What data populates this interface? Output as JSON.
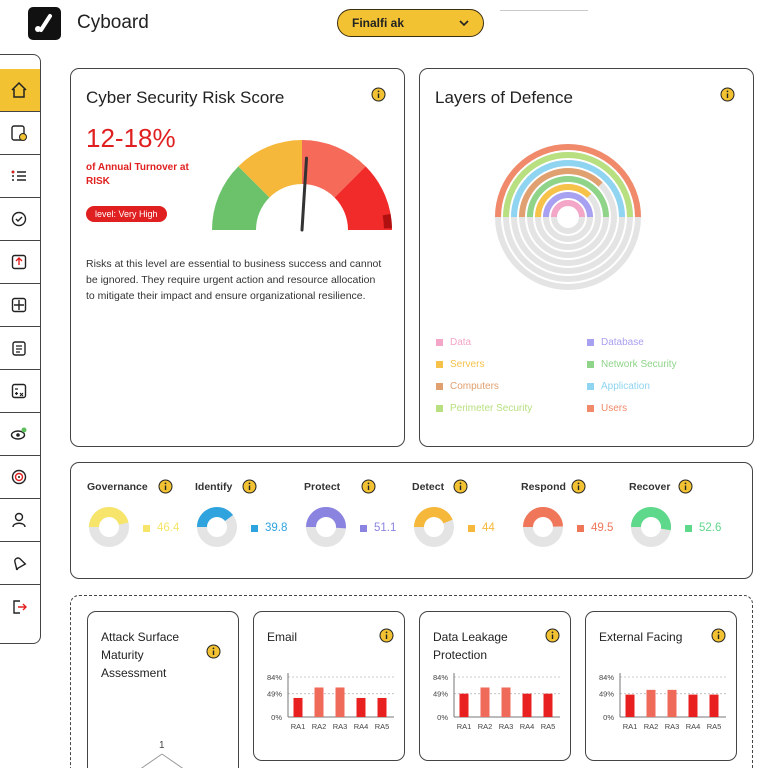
{
  "app": {
    "title": "Cyboard",
    "logo_icon": "checkmark-logo-icon"
  },
  "header": {
    "company_selected": "Finalfi ak",
    "dropdown_icon": "chevron-down-icon"
  },
  "colors": {
    "accent": "#f2c233",
    "danger": "#e02020",
    "border": "#444444"
  },
  "sidebar": {
    "items": [
      {
        "icon": "home-icon",
        "active": true
      },
      {
        "icon": "file-alert-icon"
      },
      {
        "icon": "checklist-icon"
      },
      {
        "icon": "chat-check-icon"
      },
      {
        "icon": "upload-box-icon"
      },
      {
        "icon": "grid-app-icon"
      },
      {
        "icon": "clipboard-icon"
      },
      {
        "icon": "calculator-icon"
      },
      {
        "icon": "eye-settings-icon"
      },
      {
        "icon": "target-icon"
      },
      {
        "icon": "user-icon"
      },
      {
        "icon": "bell-icon"
      },
      {
        "icon": "logout-icon"
      }
    ]
  },
  "risk_card": {
    "title": "Cyber Security Risk Score",
    "value": "12-18%",
    "subtitle": "of Annual Turnover at RISK",
    "badge": "level: Very High",
    "description": "Risks at this level are essential to business success and cannot be ignored. They require urgent action and resource allocation to mitigate their impact and ensure organizational resilience.",
    "gauge_segments": [
      "#6cc26a",
      "#f6b83a",
      "#f66a5a",
      "#f12a2a"
    ],
    "needle_level_percent": 52
  },
  "defence_card": {
    "title": "Layers of Defence",
    "legend": [
      {
        "label": "Data",
        "color": "#f4a6c8"
      },
      {
        "label": "Database",
        "color": "#a8a0f0"
      },
      {
        "label": "Servers",
        "color": "#f6c24a"
      },
      {
        "label": "Network Security",
        "color": "#8fd489"
      },
      {
        "label": "Computers",
        "color": "#e0a070"
      },
      {
        "label": "Application",
        "color": "#8fd4f0"
      },
      {
        "label": "Perimeter Security",
        "color": "#b8e080"
      },
      {
        "label": "Users",
        "color": "#f08a6a"
      }
    ],
    "rings": [
      {
        "name": "Users",
        "color": "#f08a6a",
        "percent": 100
      },
      {
        "name": "Perimeter Security",
        "color": "#b8e080",
        "percent": 100
      },
      {
        "name": "Application",
        "color": "#8fd4f0",
        "percent": 100
      },
      {
        "name": "Computers",
        "color": "#e0a070",
        "percent": 75
      },
      {
        "name": "Network Security",
        "color": "#8fd489",
        "percent": 100
      },
      {
        "name": "Servers",
        "color": "#f6c24a",
        "percent": 75
      },
      {
        "name": "Database",
        "color": "#a8a0f0",
        "percent": 100
      },
      {
        "name": "Data",
        "color": "#f4a6c8",
        "percent": 100
      }
    ]
  },
  "functions": [
    {
      "name": "Governance",
      "value": "46.4",
      "color": "#f6e56a"
    },
    {
      "name": "Identify",
      "value": "39.8",
      "color": "#2fa3de"
    },
    {
      "name": "Protect",
      "value": "51.1",
      "color": "#8a84e0"
    },
    {
      "name": "Detect",
      "value": "44",
      "color": "#f6b83a"
    },
    {
      "name": "Respond",
      "value": "49.5",
      "color": "#f0765a"
    },
    {
      "name": "Recover",
      "value": "52.6",
      "color": "#5ed88a"
    }
  ],
  "assessment": {
    "title": "Attack Surface Maturity Assessment",
    "radar_tick": "1"
  },
  "bar_cards": [
    {
      "title": "Email",
      "categories": [
        "RA1",
        "RA2",
        "RA3",
        "RA4",
        "RA5"
      ],
      "values": [
        40,
        62,
        62,
        40,
        40
      ],
      "yticks": [
        "84%",
        "49%",
        "0%"
      ]
    },
    {
      "title": "Data Leakage Protection",
      "categories": [
        "RA1",
        "RA2",
        "RA3",
        "RA4",
        "RA5"
      ],
      "values": [
        49,
        62,
        62,
        49,
        49
      ],
      "yticks": [
        "84%",
        "49%",
        "0%"
      ]
    },
    {
      "title": "External Facing",
      "categories": [
        "RA1",
        "RA2",
        "RA3",
        "RA4",
        "RA5"
      ],
      "values": [
        47,
        57,
        57,
        47,
        47
      ],
      "yticks": [
        "84%",
        "49%",
        "0%"
      ]
    }
  ]
}
